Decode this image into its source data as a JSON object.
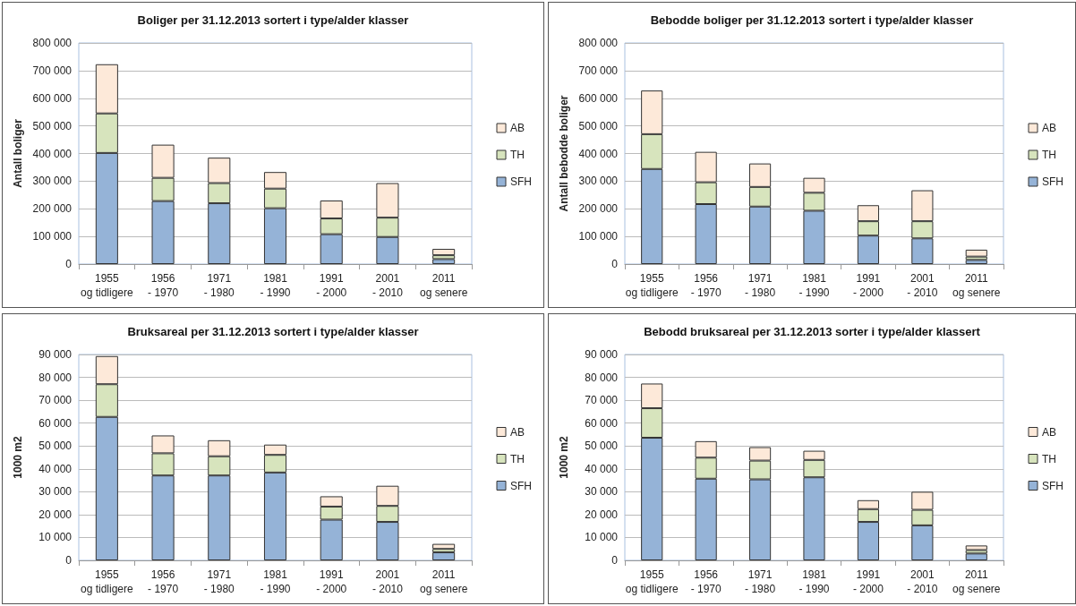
{
  "chart_data": [
    {
      "type": "bar",
      "title": "Boliger per 31.12.2013 sortert i type/alder klasser",
      "ylabel": "Antall boliger",
      "categories": [
        "1955 og tidligere",
        "1956 - 1970",
        "1971 - 1980",
        "1981 - 1990",
        "1991 - 2000",
        "2001 - 2010",
        "2011 og senere"
      ],
      "stacked": true,
      "legend": "right",
      "grid": "y",
      "ylim": [
        0,
        800000
      ],
      "yticks": [
        {
          "value": 0,
          "label": "0"
        },
        {
          "value": 100000,
          "label": "100 000"
        },
        {
          "value": 200000,
          "label": "200 000"
        },
        {
          "value": 300000,
          "label": "300 000"
        },
        {
          "value": 400000,
          "label": "400 000"
        },
        {
          "value": 500000,
          "label": "500 000"
        },
        {
          "value": 600000,
          "label": "600 000"
        },
        {
          "value": 700000,
          "label": "700 000"
        },
        {
          "value": 800000,
          "label": "800 000"
        }
      ],
      "series": [
        {
          "name": "SFH",
          "color": "#95b3d7",
          "values": [
            402000,
            228000,
            220000,
            202000,
            108000,
            98000,
            18000
          ]
        },
        {
          "name": "TH",
          "color": "#d7e4bd",
          "values": [
            143000,
            84000,
            73000,
            71000,
            57000,
            70000,
            14000
          ]
        },
        {
          "name": "AB",
          "color": "#fde9d9",
          "values": [
            178000,
            120000,
            92000,
            60000,
            65000,
            125000,
            23000
          ]
        }
      ]
    },
    {
      "type": "bar",
      "title": "Bebodde boliger per 31.12.2013 sortert i type/alder klasser",
      "ylabel": "Antall bebodde boliger",
      "categories": [
        "1955 og tidligere",
        "1956 - 1970",
        "1971 - 1980",
        "1981 - 1990",
        "1991 - 2000",
        "2001 - 2010",
        "2011 og senere"
      ],
      "stacked": true,
      "legend": "right",
      "grid": "y",
      "ylim": [
        0,
        800000
      ],
      "yticks": [
        {
          "value": 0,
          "label": "0"
        },
        {
          "value": 100000,
          "label": "100 000"
        },
        {
          "value": 200000,
          "label": "200 000"
        },
        {
          "value": 300000,
          "label": "300 000"
        },
        {
          "value": 400000,
          "label": "400 000"
        },
        {
          "value": 500000,
          "label": "500 000"
        },
        {
          "value": 600000,
          "label": "600 000"
        },
        {
          "value": 700000,
          "label": "700 000"
        },
        {
          "value": 800000,
          "label": "800 000"
        }
      ],
      "series": [
        {
          "name": "SFH",
          "color": "#95b3d7",
          "values": [
            344000,
            217000,
            208000,
            193000,
            103000,
            93000,
            15000
          ]
        },
        {
          "name": "TH",
          "color": "#d7e4bd",
          "values": [
            126000,
            79000,
            71000,
            65000,
            52000,
            62000,
            12000
          ]
        },
        {
          "name": "AB",
          "color": "#fde9d9",
          "values": [
            158000,
            110000,
            85000,
            54000,
            58000,
            112000,
            25000
          ]
        }
      ]
    },
    {
      "type": "bar",
      "title": "Bruksareal per 31.12.2013 sortert i type/alder klasser",
      "ylabel": "1000 m2",
      "categories": [
        "1955 og tidligere",
        "1956 - 1970",
        "1971 - 1980",
        "1981 - 1990",
        "1991 - 2000",
        "2001 - 2010",
        "2011 og senere"
      ],
      "stacked": true,
      "legend": "right",
      "grid": "y",
      "ylim": [
        0,
        90000
      ],
      "yticks": [
        {
          "value": 0,
          "label": "0"
        },
        {
          "value": 10000,
          "label": "10 000"
        },
        {
          "value": 20000,
          "label": "20 000"
        },
        {
          "value": 30000,
          "label": "30 000"
        },
        {
          "value": 40000,
          "label": "40 000"
        },
        {
          "value": 50000,
          "label": "50 000"
        },
        {
          "value": 60000,
          "label": "60 000"
        },
        {
          "value": 70000,
          "label": "70 000"
        },
        {
          "value": 80000,
          "label": "80 000"
        },
        {
          "value": 90000,
          "label": "90 000"
        }
      ],
      "series": [
        {
          "name": "SFH",
          "color": "#95b3d7",
          "values": [
            62700,
            37100,
            37100,
            38400,
            17800,
            16800,
            3500
          ]
        },
        {
          "name": "TH",
          "color": "#d7e4bd",
          "values": [
            14300,
            9700,
            8400,
            7700,
            5700,
            7000,
            1500
          ]
        },
        {
          "name": "AB",
          "color": "#fde9d9",
          "values": [
            12300,
            7800,
            7000,
            4500,
            4500,
            8800,
            2200
          ]
        }
      ]
    },
    {
      "type": "bar",
      "title": "Bebodd bruksareal per 31.12.2013 sorter i type/alder klassert",
      "ylabel": "1000 m2",
      "categories": [
        "1955 og tidligere",
        "1956 - 1970",
        "1971 - 1980",
        "1981 - 1990",
        "1991 - 2000",
        "2001 - 2010",
        "2011 og senere"
      ],
      "stacked": true,
      "legend": "right",
      "grid": "y",
      "ylim": [
        0,
        90000
      ],
      "yticks": [
        {
          "value": 0,
          "label": "0"
        },
        {
          "value": 10000,
          "label": "10 000"
        },
        {
          "value": 20000,
          "label": "20 000"
        },
        {
          "value": 30000,
          "label": "30 000"
        },
        {
          "value": 40000,
          "label": "40 000"
        },
        {
          "value": 50000,
          "label": "50 000"
        },
        {
          "value": 60000,
          "label": "60 000"
        },
        {
          "value": 70000,
          "label": "70 000"
        },
        {
          "value": 80000,
          "label": "80 000"
        },
        {
          "value": 90000,
          "label": "90 000"
        }
      ],
      "series": [
        {
          "name": "SFH",
          "color": "#95b3d7",
          "values": [
            53600,
            35700,
            35400,
            36300,
            16800,
            15300,
            3000
          ]
        },
        {
          "name": "TH",
          "color": "#d7e4bd",
          "values": [
            12900,
            9200,
            8200,
            7600,
            5600,
            6800,
            1500
          ]
        },
        {
          "name": "AB",
          "color": "#fde9d9",
          "values": [
            10800,
            7200,
            5900,
            4000,
            3900,
            7900,
            2000
          ]
        }
      ]
    }
  ]
}
